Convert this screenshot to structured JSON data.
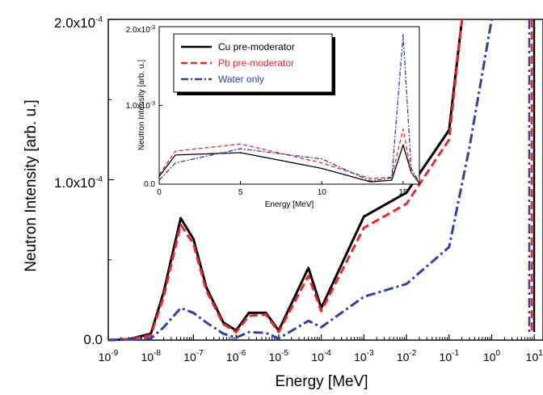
{
  "chart_data": [
    {
      "type": "line",
      "title": "",
      "xlabel": "Energy [MeV]",
      "ylabel": "Neutron Intensity [arb. u.]",
      "xscale": "log",
      "xlim": [
        1e-09,
        16
      ],
      "ylim": [
        0,
        0.0002
      ],
      "grid": false,
      "legend_position": "inset top-left",
      "y_ticks": [
        {
          "value": 0,
          "label": "0.0"
        },
        {
          "value": 0.0001,
          "label_mantissa": "1.0x10",
          "label_exp": "-4"
        },
        {
          "value": 0.0002,
          "label_mantissa": "2.0x10",
          "label_exp": "-4"
        }
      ],
      "x_ticks": [
        {
          "value": 1e-09,
          "exp": "-9"
        },
        {
          "value": 1e-08,
          "exp": "-8"
        },
        {
          "value": 1e-07,
          "exp": "-7"
        },
        {
          "value": 1e-06,
          "exp": "-6"
        },
        {
          "value": 1e-05,
          "exp": "-5"
        },
        {
          "value": 0.0001,
          "exp": "-4"
        },
        {
          "value": 0.001,
          "exp": "-3"
        },
        {
          "value": 0.01,
          "exp": "-2"
        },
        {
          "value": 0.1,
          "exp": "-1"
        },
        {
          "value": 1,
          "exp": "0"
        },
        {
          "value": 10,
          "exp": "1"
        }
      ],
      "series": [
        {
          "name": "Cu pre-moderator",
          "color": "#000000",
          "style": "solid",
          "points": [
            [
              1e-09,
              0
            ],
            [
              3e-09,
              5e-07
            ],
            [
              1e-08,
              4e-06
            ],
            [
              2e-08,
              3e-05
            ],
            [
              5e-08,
              7.6e-05
            ],
            [
              1e-07,
              6.3e-05
            ],
            [
              2e-07,
              3.3e-05
            ],
            [
              5e-07,
              1.1e-05
            ],
            [
              1e-06,
              6e-06
            ],
            [
              2e-06,
              1.7e-05
            ],
            [
              5e-06,
              1.7e-05
            ],
            [
              1e-05,
              6e-06
            ],
            [
              5e-05,
              4.5e-05
            ],
            [
              0.0001,
              2e-05
            ],
            [
              0.001,
              7.7e-05
            ],
            [
              0.01,
              9.2e-05
            ],
            [
              0.1,
              0.000131
            ],
            [
              0.2,
              0.0002
            ]
          ]
        },
        {
          "name": "Pb pre-moderator",
          "color": "#e8262d",
          "style": "dashed",
          "points": [
            [
              1e-09,
              0
            ],
            [
              3e-09,
              5e-07
            ],
            [
              1e-08,
              3e-06
            ],
            [
              2e-08,
              2.7e-05
            ],
            [
              5e-08,
              7.2e-05
            ],
            [
              1e-07,
              6e-05
            ],
            [
              2e-07,
              3.1e-05
            ],
            [
              5e-07,
              1e-05
            ],
            [
              1e-06,
              5e-06
            ],
            [
              2e-06,
              1.5e-05
            ],
            [
              5e-06,
              1.6e-05
            ],
            [
              1e-05,
              5e-06
            ],
            [
              5e-05,
              4e-05
            ],
            [
              0.0001,
              1.8e-05
            ],
            [
              0.001,
              7e-05
            ],
            [
              0.01,
              8.5e-05
            ],
            [
              0.1,
              0.000125
            ],
            [
              0.2,
              0.0002
            ]
          ]
        },
        {
          "name": "Water only",
          "color": "#3040a8",
          "style": "dashdot",
          "points": [
            [
              1e-09,
              0
            ],
            [
              1e-08,
              1e-06
            ],
            [
              2e-08,
              8e-06
            ],
            [
              5e-08,
              2e-05
            ],
            [
              1e-07,
              1.7e-05
            ],
            [
              2e-07,
              1.1e-05
            ],
            [
              5e-07,
              4e-06
            ],
            [
              1e-06,
              1.5e-06
            ],
            [
              2e-06,
              5e-06
            ],
            [
              5e-06,
              4.5e-06
            ],
            [
              1e-05,
              1e-06
            ],
            [
              5e-05,
              1.2e-05
            ],
            [
              0.0001,
              8e-06
            ],
            [
              0.001,
              2.7e-05
            ],
            [
              0.01,
              3.5e-05
            ],
            [
              0.1,
              5.8e-05
            ],
            [
              0.3,
              0.00012
            ],
            [
              1,
              0.0002
            ]
          ]
        }
      ]
    },
    {
      "type": "line",
      "title": "",
      "xlabel": "Energy [MeV]",
      "ylabel": "Neutron Intensity [arb. u.]",
      "xscale": "linear",
      "xlim": [
        0,
        16
      ],
      "ylim": [
        0,
        0.002
      ],
      "grid": false,
      "x_ticks": [
        0,
        5,
        10,
        15
      ],
      "y_ticks": [
        {
          "value": 0,
          "label": "0.0"
        },
        {
          "value": 0.001,
          "label_mantissa": "1.0x10",
          "label_exp": "-3"
        },
        {
          "value": 0.002,
          "label_mantissa": "2.0x10",
          "label_exp": "-3"
        }
      ],
      "series": [
        {
          "name": "Cu pre-moderator",
          "color": "#000000",
          "style": "solid",
          "points": [
            [
              0,
              0.0001
            ],
            [
              1,
              0.00037
            ],
            [
              5,
              0.0004
            ],
            [
              10,
              0.0002
            ],
            [
              13,
              3e-05
            ],
            [
              14.3,
              5e-05
            ],
            [
              15,
              0.0005
            ],
            [
              15.5,
              0.00015
            ],
            [
              16,
              1e-05
            ]
          ]
        },
        {
          "name": "Pb pre-moderator",
          "color": "#e8262d",
          "style": "dashed",
          "points": [
            [
              0,
              0.00012
            ],
            [
              1,
              0.00042
            ],
            [
              5,
              0.00051
            ],
            [
              10,
              0.00027
            ],
            [
              13,
              7e-05
            ],
            [
              14.3,
              9e-05
            ],
            [
              15,
              0.0007
            ],
            [
              15.5,
              0.00015
            ],
            [
              16,
              2e-05
            ]
          ]
        },
        {
          "name": "Water only",
          "color": "#3040a8",
          "style": "dashdot",
          "points": [
            [
              0,
              5e-05
            ],
            [
              1,
              0.00027
            ],
            [
              5,
              0.00045
            ],
            [
              10,
              0.00032
            ],
            [
              13,
              4e-05
            ],
            [
              14.3,
              8e-05
            ],
            [
              15,
              0.0019
            ],
            [
              15.5,
              0.0002
            ],
            [
              16,
              2e-05
            ]
          ]
        }
      ]
    }
  ]
}
